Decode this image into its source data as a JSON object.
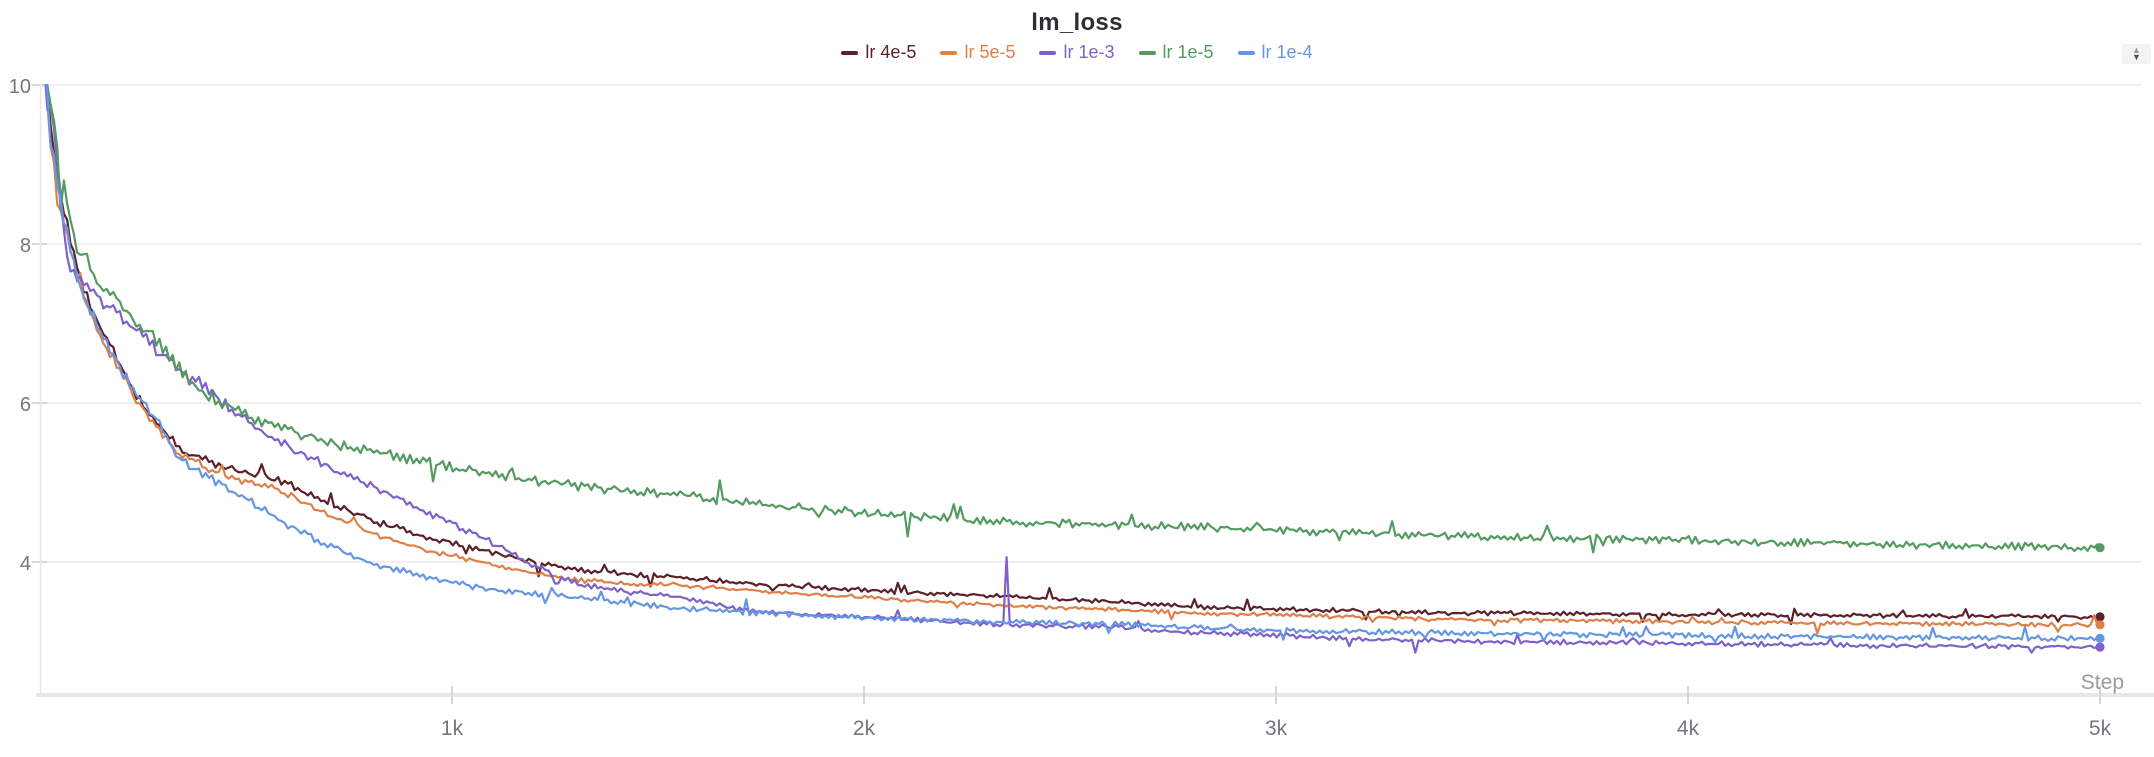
{
  "panel": {
    "stepper": {
      "up_glyph": "▲",
      "down_glyph": "▼"
    }
  },
  "theme": {
    "background": "#ffffff",
    "title_color": "#2f2f33",
    "grid_color": "#ebebee",
    "axis_line_color": "#e7e7ea",
    "tick_mark_color": "#d6d6dc",
    "tick_text_color": "#76767c",
    "step_label_color": "#9a9aa0"
  },
  "chart_data": {
    "type": "line",
    "title": "lm_loss",
    "xlabel": "Step",
    "ylabel": "",
    "x_range": [
      0,
      5000
    ],
    "y_range": [
      2.33,
      10
    ],
    "grid": "horizontal-only",
    "legend_position": "top-center",
    "x_ticks": [
      {
        "step": 1000,
        "label": "1k"
      },
      {
        "step": 2000,
        "label": "2k"
      },
      {
        "step": 3000,
        "label": "3k"
      },
      {
        "step": 4000,
        "label": "4k"
      },
      {
        "step": 5000,
        "label": "5k"
      }
    ],
    "y_ticks": [
      {
        "value": 4,
        "label": "4"
      },
      {
        "value": 6,
        "label": "6"
      },
      {
        "value": 8,
        "label": "8"
      },
      {
        "value": 10,
        "label": "10"
      }
    ],
    "series": [
      {
        "name": "lr 4e-5",
        "color": "#5c2028",
        "seed": 11,
        "noise": 0.026,
        "end_value": 3.31,
        "points": [
          [
            10,
            10.3
          ],
          [
            25,
            9.5
          ],
          [
            50,
            8.6
          ],
          [
            75,
            8.05
          ],
          [
            100,
            7.5
          ],
          [
            150,
            6.9
          ],
          [
            200,
            6.45
          ],
          [
            230,
            6.1
          ],
          [
            270,
            5.85
          ],
          [
            340,
            5.42
          ],
          [
            450,
            5.18
          ],
          [
            580,
            5.03
          ],
          [
            700,
            4.75
          ],
          [
            825,
            4.49
          ],
          [
            950,
            4.3
          ],
          [
            1070,
            4.15
          ],
          [
            1200,
            4.0
          ],
          [
            1310,
            3.9
          ],
          [
            1430,
            3.85
          ],
          [
            1550,
            3.81
          ],
          [
            1800,
            3.7
          ],
          [
            2100,
            3.62
          ],
          [
            2350,
            3.57
          ],
          [
            2600,
            3.5
          ],
          [
            2810,
            3.43
          ],
          [
            3100,
            3.4
          ],
          [
            3400,
            3.36
          ],
          [
            3700,
            3.35
          ],
          [
            4000,
            3.34
          ],
          [
            4300,
            3.33
          ],
          [
            4600,
            3.32
          ],
          [
            5000,
            3.31
          ]
        ]
      },
      {
        "name": "lr 5e-5",
        "color": "#dd8049",
        "seed": 22,
        "noise": 0.026,
        "end_value": 3.21,
        "points": [
          [
            10,
            10.3
          ],
          [
            25,
            9.3
          ],
          [
            50,
            8.45
          ],
          [
            75,
            7.9
          ],
          [
            100,
            7.4
          ],
          [
            150,
            6.82
          ],
          [
            200,
            6.38
          ],
          [
            230,
            6.05
          ],
          [
            270,
            5.8
          ],
          [
            340,
            5.35
          ],
          [
            450,
            5.08
          ],
          [
            580,
            4.91
          ],
          [
            700,
            4.6
          ],
          [
            825,
            4.32
          ],
          [
            950,
            4.14
          ],
          [
            1070,
            4.0
          ],
          [
            1200,
            3.85
          ],
          [
            1310,
            3.77
          ],
          [
            1430,
            3.73
          ],
          [
            1550,
            3.71
          ],
          [
            1800,
            3.62
          ],
          [
            2100,
            3.52
          ],
          [
            2350,
            3.45
          ],
          [
            2600,
            3.4
          ],
          [
            2810,
            3.36
          ],
          [
            3100,
            3.32
          ],
          [
            3400,
            3.28
          ],
          [
            3700,
            3.26
          ],
          [
            4000,
            3.25
          ],
          [
            4300,
            3.23
          ],
          [
            4600,
            3.22
          ],
          [
            5000,
            3.21
          ]
        ]
      },
      {
        "name": "lr 1e-3",
        "color": "#7e62ca",
        "seed": 33,
        "noise": 0.028,
        "end_value": 2.93,
        "spikes": [
          [
            2349,
            4.06
          ]
        ],
        "points": [
          [
            10,
            10.3
          ],
          [
            30,
            9.6
          ],
          [
            65,
            7.8
          ],
          [
            105,
            7.5
          ],
          [
            145,
            7.3
          ],
          [
            195,
            7.08
          ],
          [
            240,
            6.88
          ],
          [
            290,
            6.63
          ],
          [
            340,
            6.39
          ],
          [
            390,
            6.25
          ],
          [
            480,
            5.85
          ],
          [
            580,
            5.51
          ],
          [
            700,
            5.2
          ],
          [
            825,
            4.91
          ],
          [
            950,
            4.6
          ],
          [
            1070,
            4.32
          ],
          [
            1200,
            3.95
          ],
          [
            1310,
            3.72
          ],
          [
            1430,
            3.62
          ],
          [
            1550,
            3.56
          ],
          [
            1700,
            3.4
          ],
          [
            1900,
            3.33
          ],
          [
            2100,
            3.28
          ],
          [
            2300,
            3.22
          ],
          [
            2450,
            3.2
          ],
          [
            2600,
            3.18
          ],
          [
            2810,
            3.11
          ],
          [
            3000,
            3.08
          ],
          [
            3200,
            3.03
          ],
          [
            3500,
            3.0
          ],
          [
            3970,
            2.98
          ],
          [
            4400,
            2.95
          ],
          [
            5000,
            2.93
          ]
        ]
      },
      {
        "name": "lr 1e-5",
        "color": "#539b60",
        "seed": 44,
        "noise": 0.034,
        "end_value": 4.18,
        "points": [
          [
            10,
            10.3
          ],
          [
            40,
            9.3
          ],
          [
            85,
            8.0
          ],
          [
            145,
            7.51
          ],
          [
            225,
            7.08
          ],
          [
            305,
            6.67
          ],
          [
            350,
            6.35
          ],
          [
            400,
            6.12
          ],
          [
            500,
            5.85
          ],
          [
            580,
            5.7
          ],
          [
            700,
            5.5
          ],
          [
            825,
            5.38
          ],
          [
            950,
            5.24
          ],
          [
            1070,
            5.12
          ],
          [
            1200,
            5.02
          ],
          [
            1310,
            4.95
          ],
          [
            1430,
            4.89
          ],
          [
            1550,
            4.84
          ],
          [
            1750,
            4.72
          ],
          [
            2000,
            4.62
          ],
          [
            2250,
            4.53
          ],
          [
            2500,
            4.48
          ],
          [
            2810,
            4.44
          ],
          [
            3100,
            4.38
          ],
          [
            3400,
            4.33
          ],
          [
            3700,
            4.3
          ],
          [
            3970,
            4.28
          ],
          [
            4300,
            4.24
          ],
          [
            4600,
            4.21
          ],
          [
            5000,
            4.18
          ]
        ]
      },
      {
        "name": "lr 1e-4",
        "color": "#6596e4",
        "seed": 55,
        "noise": 0.032,
        "end_value": 3.04,
        "points": [
          [
            10,
            10.3
          ],
          [
            25,
            9.4
          ],
          [
            50,
            8.5
          ],
          [
            75,
            7.95
          ],
          [
            100,
            7.45
          ],
          [
            150,
            6.85
          ],
          [
            200,
            6.4
          ],
          [
            230,
            6.15
          ],
          [
            270,
            5.9
          ],
          [
            340,
            5.28
          ],
          [
            450,
            4.95
          ],
          [
            580,
            4.53
          ],
          [
            700,
            4.2
          ],
          [
            825,
            3.96
          ],
          [
            950,
            3.8
          ],
          [
            1070,
            3.67
          ],
          [
            1200,
            3.6
          ],
          [
            1310,
            3.55
          ],
          [
            1430,
            3.48
          ],
          [
            1550,
            3.42
          ],
          [
            1700,
            3.37
          ],
          [
            1900,
            3.32
          ],
          [
            2100,
            3.28
          ],
          [
            2350,
            3.25
          ],
          [
            2600,
            3.22
          ],
          [
            2810,
            3.17
          ],
          [
            3100,
            3.13
          ],
          [
            3400,
            3.11
          ],
          [
            3700,
            3.09
          ],
          [
            3970,
            3.08
          ],
          [
            4300,
            3.06
          ],
          [
            4600,
            3.05
          ],
          [
            5000,
            3.04
          ]
        ]
      }
    ]
  }
}
